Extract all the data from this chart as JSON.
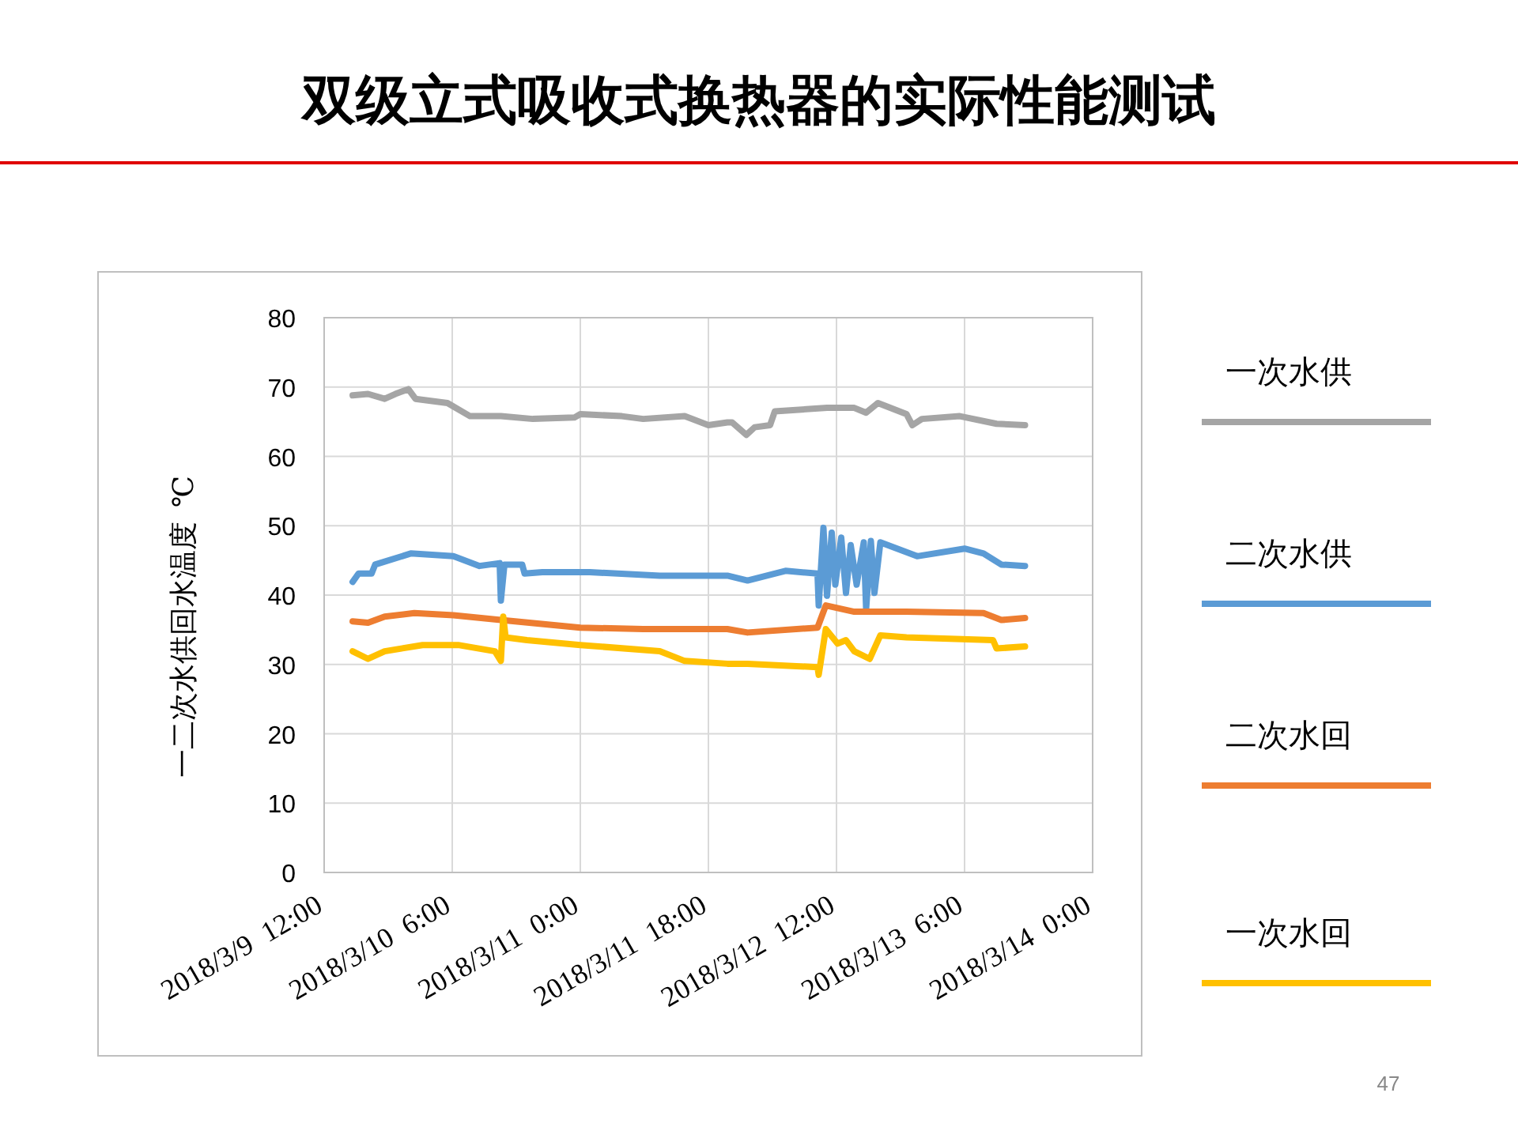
{
  "chart_data": {
    "type": "line",
    "title": "双级立式吸收式换热器的实际性能测试",
    "ylabel": "一二次水供回水温度  ℃",
    "annotations": [
      "47"
    ],
    "xlim": [
      "2018-03-09T12:00",
      "2018-03-14T00:00"
    ],
    "xticks": [
      {
        "value": "2018-03-09T12:00",
        "label": "2018/3/9  12:00"
      },
      {
        "value": "2018-03-10T06:00",
        "label": "2018/3/10  6:00"
      },
      {
        "value": "2018-03-11T00:00",
        "label": "2018/3/11  0:00"
      },
      {
        "value": "2018-03-11T18:00",
        "label": "2018/3/11  18:00"
      },
      {
        "value": "2018-03-12T12:00",
        "label": "2018/3/12  12:00"
      },
      {
        "value": "2018-03-13T06:00",
        "label": "2018/3/13  6:00"
      },
      {
        "value": "2018-03-14T00:00",
        "label": "2018/3/14  0:00"
      }
    ],
    "ylim": [
      0,
      80
    ],
    "yticks": [
      0,
      10,
      20,
      30,
      40,
      50,
      60,
      70,
      80
    ],
    "grid": true,
    "legend": "right",
    "marker": "none",
    "line_style": "solid",
    "series": [
      {
        "name": "一次水供",
        "color": "#a5a5a5",
        "x": [
          "2018-03-09T16:00",
          "2018-03-09T18:10",
          "2018-03-09T20:30",
          "2018-03-09T22:00",
          "2018-03-09T23:50",
          "2018-03-10T00:50",
          "2018-03-10T05:20",
          "2018-03-10T08:30",
          "2018-03-10T12:50",
          "2018-03-10T17:20",
          "2018-03-10T23:10",
          "2018-03-11T00:00",
          "2018-03-11T05:50",
          "2018-03-11T08:50",
          "2018-03-11T14:40",
          "2018-03-11T18:00",
          "2018-03-11T20:40",
          "2018-03-11T21:20",
          "2018-03-11T23:20",
          "2018-03-12T00:30",
          "2018-03-12T02:40",
          "2018-03-12T03:20",
          "2018-03-12T10:40",
          "2018-03-12T14:30",
          "2018-03-12T16:10",
          "2018-03-12T17:50",
          "2018-03-12T21:50",
          "2018-03-12T22:40",
          "2018-03-13T00:00",
          "2018-03-13T05:20",
          "2018-03-13T10:30",
          "2018-03-13T14:30"
        ],
        "values": [
          68.8,
          69.0,
          68.3,
          69.0,
          69.7,
          68.3,
          67.7,
          65.8,
          65.8,
          65.4,
          65.6,
          66.1,
          65.8,
          65.4,
          65.8,
          64.5,
          64.9,
          64.9,
          63.1,
          64.2,
          64.5,
          66.5,
          67.0,
          67.0,
          66.3,
          67.7,
          66.1,
          64.5,
          65.4,
          65.8,
          64.7,
          64.5
        ]
      },
      {
        "name": "二次水供",
        "color": "#5b9bd5",
        "x": [
          "2018-03-09T16:00",
          "2018-03-09T16:50",
          "2018-03-09T18:40",
          "2018-03-09T19:10",
          "2018-03-10T00:10",
          "2018-03-10T06:10",
          "2018-03-10T09:50",
          "2018-03-10T12:40",
          "2018-03-10T12:50",
          "2018-03-10T13:20",
          "2018-03-10T15:50",
          "2018-03-10T16:10",
          "2018-03-10T18:40",
          "2018-03-11T01:20",
          "2018-03-11T11:10",
          "2018-03-11T20:40",
          "2018-03-11T23:30",
          "2018-03-12T04:50",
          "2018-03-12T09:20",
          "2018-03-12T09:30",
          "2018-03-12T10:10",
          "2018-03-12T10:40",
          "2018-03-12T11:20",
          "2018-03-12T11:50",
          "2018-03-12T12:40",
          "2018-03-12T13:20",
          "2018-03-12T14:00",
          "2018-03-12T14:50",
          "2018-03-12T15:50",
          "2018-03-12T16:10",
          "2018-03-12T16:50",
          "2018-03-12T17:20",
          "2018-03-12T18:10",
          "2018-03-12T23:20",
          "2018-03-13T06:00",
          "2018-03-13T08:40",
          "2018-03-13T11:10",
          "2018-03-13T14:30"
        ],
        "values": [
          41.9,
          43.1,
          43.1,
          44.4,
          46.0,
          45.6,
          44.2,
          44.6,
          39.2,
          44.4,
          44.4,
          43.1,
          43.3,
          43.3,
          42.8,
          42.8,
          42.1,
          43.5,
          43.1,
          38.5,
          49.7,
          39.9,
          49.0,
          41.5,
          48.3,
          40.3,
          47.2,
          41.5,
          47.6,
          38.0,
          47.8,
          40.3,
          47.6,
          45.6,
          46.7,
          46.0,
          44.4,
          44.2
        ]
      },
      {
        "name": "二次水回",
        "color": "#ed7d31",
        "x": [
          "2018-03-09T16:00",
          "2018-03-09T18:10",
          "2018-03-09T20:30",
          "2018-03-10T00:40",
          "2018-03-10T06:10",
          "2018-03-10T12:50",
          "2018-03-11T00:00",
          "2018-03-11T08:50",
          "2018-03-11T20:40",
          "2018-03-11T23:30",
          "2018-03-12T09:20",
          "2018-03-12T10:30",
          "2018-03-12T14:30",
          "2018-03-12T21:50",
          "2018-03-13T08:40",
          "2018-03-13T11:10",
          "2018-03-13T14:30"
        ],
        "values": [
          36.2,
          36.0,
          36.9,
          37.4,
          37.1,
          36.4,
          35.3,
          35.1,
          35.1,
          34.6,
          35.3,
          38.5,
          37.6,
          37.6,
          37.4,
          36.4,
          36.7
        ]
      },
      {
        "name": "一次水回",
        "color": "#ffc000",
        "x": [
          "2018-03-09T16:00",
          "2018-03-09T18:10",
          "2018-03-09T20:30",
          "2018-03-10T01:50",
          "2018-03-10T06:50",
          "2018-03-10T12:00",
          "2018-03-10T12:50",
          "2018-03-10T13:10",
          "2018-03-10T13:30",
          "2018-03-10T16:30",
          "2018-03-11T00:00",
          "2018-03-11T11:10",
          "2018-03-11T14:40",
          "2018-03-11T20:40",
          "2018-03-11T23:30",
          "2018-03-12T09:20",
          "2018-03-12T09:30",
          "2018-03-12T10:30",
          "2018-03-12T12:10",
          "2018-03-12T13:20",
          "2018-03-12T14:30",
          "2018-03-12T16:40",
          "2018-03-12T18:10",
          "2018-03-12T21:50",
          "2018-03-13T10:00",
          "2018-03-13T10:30",
          "2018-03-13T14:30"
        ],
        "values": [
          31.9,
          30.8,
          31.9,
          32.8,
          32.8,
          31.9,
          30.5,
          36.9,
          33.9,
          33.5,
          32.8,
          31.9,
          30.5,
          30.1,
          30.1,
          29.6,
          28.5,
          35.1,
          33.0,
          33.5,
          31.9,
          30.8,
          34.2,
          33.9,
          33.5,
          32.3,
          32.6
        ]
      }
    ]
  }
}
